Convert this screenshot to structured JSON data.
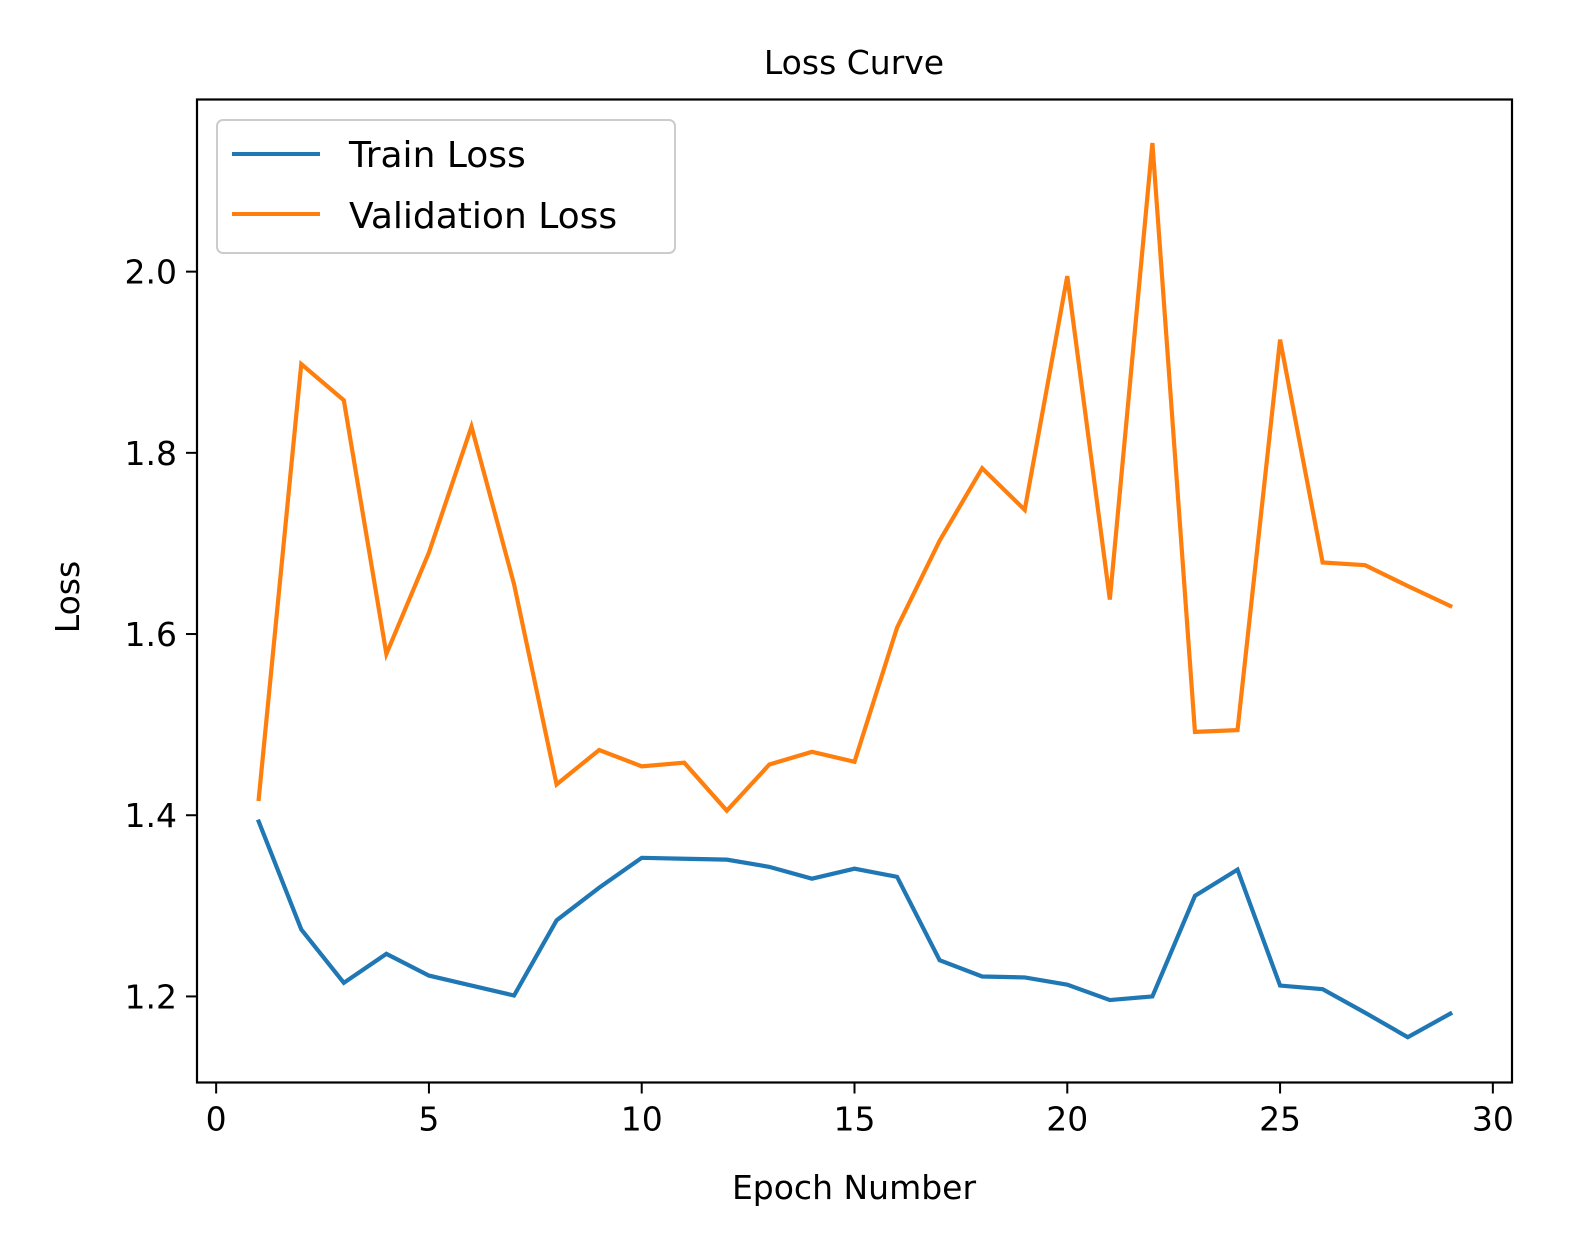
{
  "chart_data": {
    "type": "line",
    "title": "Loss Curve",
    "xlabel": "Epoch Number",
    "ylabel": "Loss",
    "xlim": [
      -0.45,
      30.45
    ],
    "ylim": [
      1.105,
      2.19
    ],
    "xticks": [
      0,
      5,
      10,
      15,
      20,
      25,
      30
    ],
    "xtick_labels": [
      "0",
      "5",
      "10",
      "15",
      "20",
      "25",
      "30"
    ],
    "yticks": [
      1.2,
      1.4,
      1.6,
      1.8,
      2.0
    ],
    "ytick_labels": [
      "1.2",
      "1.4",
      "1.6",
      "1.8",
      "2.0"
    ],
    "grid": false,
    "legend_position": "upper-left",
    "x": [
      1,
      2,
      3,
      4,
      5,
      6,
      7,
      8,
      9,
      10,
      11,
      12,
      13,
      14,
      15,
      16,
      17,
      18,
      19,
      20,
      21,
      22,
      23,
      24,
      25,
      26,
      27,
      28,
      29
    ],
    "series": [
      {
        "name": "Train Loss",
        "color": "#1f77b4",
        "values": [
          1.393,
          1.274,
          1.215,
          1.247,
          1.223,
          1.212,
          1.201,
          1.284,
          1.32,
          1.353,
          1.352,
          1.351,
          1.343,
          1.33,
          1.341,
          1.332,
          1.24,
          1.222,
          1.221,
          1.213,
          1.196,
          1.2,
          1.311,
          1.34,
          1.212,
          1.208,
          1.182,
          1.155,
          1.181
        ]
      },
      {
        "name": "Validation Loss",
        "color": "#ff7f0e",
        "values": [
          1.418,
          1.898,
          1.858,
          1.578,
          1.69,
          1.829,
          1.655,
          1.434,
          1.472,
          1.454,
          1.458,
          1.405,
          1.456,
          1.47,
          1.459,
          1.607,
          1.703,
          1.783,
          1.737,
          1.995,
          1.638,
          2.142,
          1.492,
          1.494,
          1.925,
          1.679,
          1.676,
          1.653,
          1.631
        ]
      }
    ]
  }
}
